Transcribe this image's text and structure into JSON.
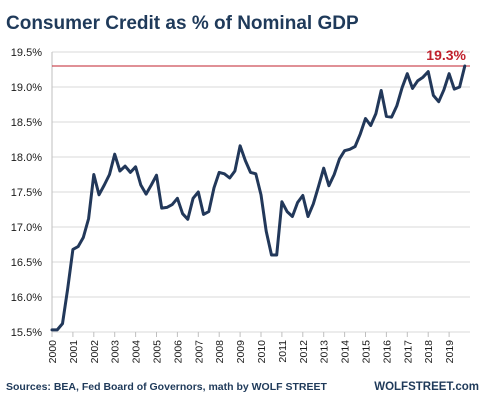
{
  "chart_data": {
    "type": "line",
    "title": "Consumer Credit as % of Nominal GDP",
    "xlabel": "",
    "ylabel": "",
    "ylim": [
      15.5,
      19.5
    ],
    "yticks": [
      "15.5%",
      "16.0%",
      "16.5%",
      "17.0%",
      "17.5%",
      "18.0%",
      "18.5%",
      "19.0%",
      "19.5%"
    ],
    "ytick_values": [
      15.5,
      16.0,
      16.5,
      17.0,
      17.5,
      18.0,
      18.5,
      19.0,
      19.5
    ],
    "xticks": [
      "2000",
      "2001",
      "2002",
      "2003",
      "2004",
      "2005",
      "2006",
      "2007",
      "2008",
      "2009",
      "2010",
      "2011",
      "2012",
      "2013",
      "2014",
      "2015",
      "2016",
      "2017",
      "2018",
      "2019"
    ],
    "grid": "horizontal",
    "line_color": "#22385a",
    "reference_line": {
      "value": 19.3,
      "color": "#c0202c"
    },
    "annotation": {
      "text": "19.3%",
      "color": "#c0202c"
    },
    "series": [
      {
        "x": [
          2000.0,
          2000.25,
          2000.5,
          2000.75,
          2001.0,
          2001.25,
          2001.5,
          2001.75,
          2002.0,
          2002.25,
          2002.5,
          2002.75,
          2003.0,
          2003.25,
          2003.5,
          2003.75,
          2004.0,
          2004.25,
          2004.5,
          2004.75,
          2005.0,
          2005.25,
          2005.5,
          2005.75,
          2006.0,
          2006.25,
          2006.5,
          2006.75,
          2007.0,
          2007.25,
          2007.5,
          2007.75,
          2008.0,
          2008.25,
          2008.5,
          2008.75,
          2009.0,
          2009.25,
          2009.5,
          2009.75,
          2010.0,
          2010.25,
          2010.5,
          2010.75,
          2011.0,
          2011.25,
          2011.5,
          2011.75,
          2012.0,
          2012.25,
          2012.5,
          2012.75,
          2013.0,
          2013.25,
          2013.5,
          2013.75,
          2014.0,
          2014.25,
          2014.5,
          2014.75,
          2015.0,
          2015.25,
          2015.5,
          2015.75,
          2016.0,
          2016.25,
          2016.5,
          2016.75,
          2017.0,
          2017.25,
          2017.5,
          2017.75,
          2018.0,
          2018.25,
          2018.5,
          2018.75,
          2019.0,
          2019.25,
          2019.5,
          2019.75
        ],
        "values": [
          15.53,
          15.53,
          15.62,
          16.12,
          16.68,
          16.72,
          16.85,
          17.12,
          17.75,
          17.46,
          17.6,
          17.75,
          18.04,
          17.8,
          17.87,
          17.78,
          17.86,
          17.6,
          17.47,
          17.6,
          17.74,
          17.27,
          17.28,
          17.32,
          17.41,
          17.19,
          17.11,
          17.41,
          17.5,
          17.18,
          17.22,
          17.56,
          17.78,
          17.76,
          17.7,
          17.8,
          18.16,
          17.95,
          17.78,
          17.76,
          17.46,
          16.94,
          16.6,
          16.6,
          17.36,
          17.22,
          17.15,
          17.35,
          17.45,
          17.15,
          17.33,
          17.58,
          17.84,
          17.59,
          17.75,
          17.97,
          18.09,
          18.11,
          18.15,
          18.33,
          18.55,
          18.45,
          18.62,
          18.95,
          18.58,
          18.57,
          18.73,
          18.99,
          19.19,
          18.98,
          19.09,
          19.14,
          19.22,
          18.88,
          18.79,
          18.96,
          19.19,
          18.97,
          19.0,
          19.3
        ]
      }
    ]
  },
  "footer": {
    "source": "Sources: BEA, Fed Board of Governors, math by WOLF STREET",
    "brand": "WOLFSTREET.com"
  }
}
